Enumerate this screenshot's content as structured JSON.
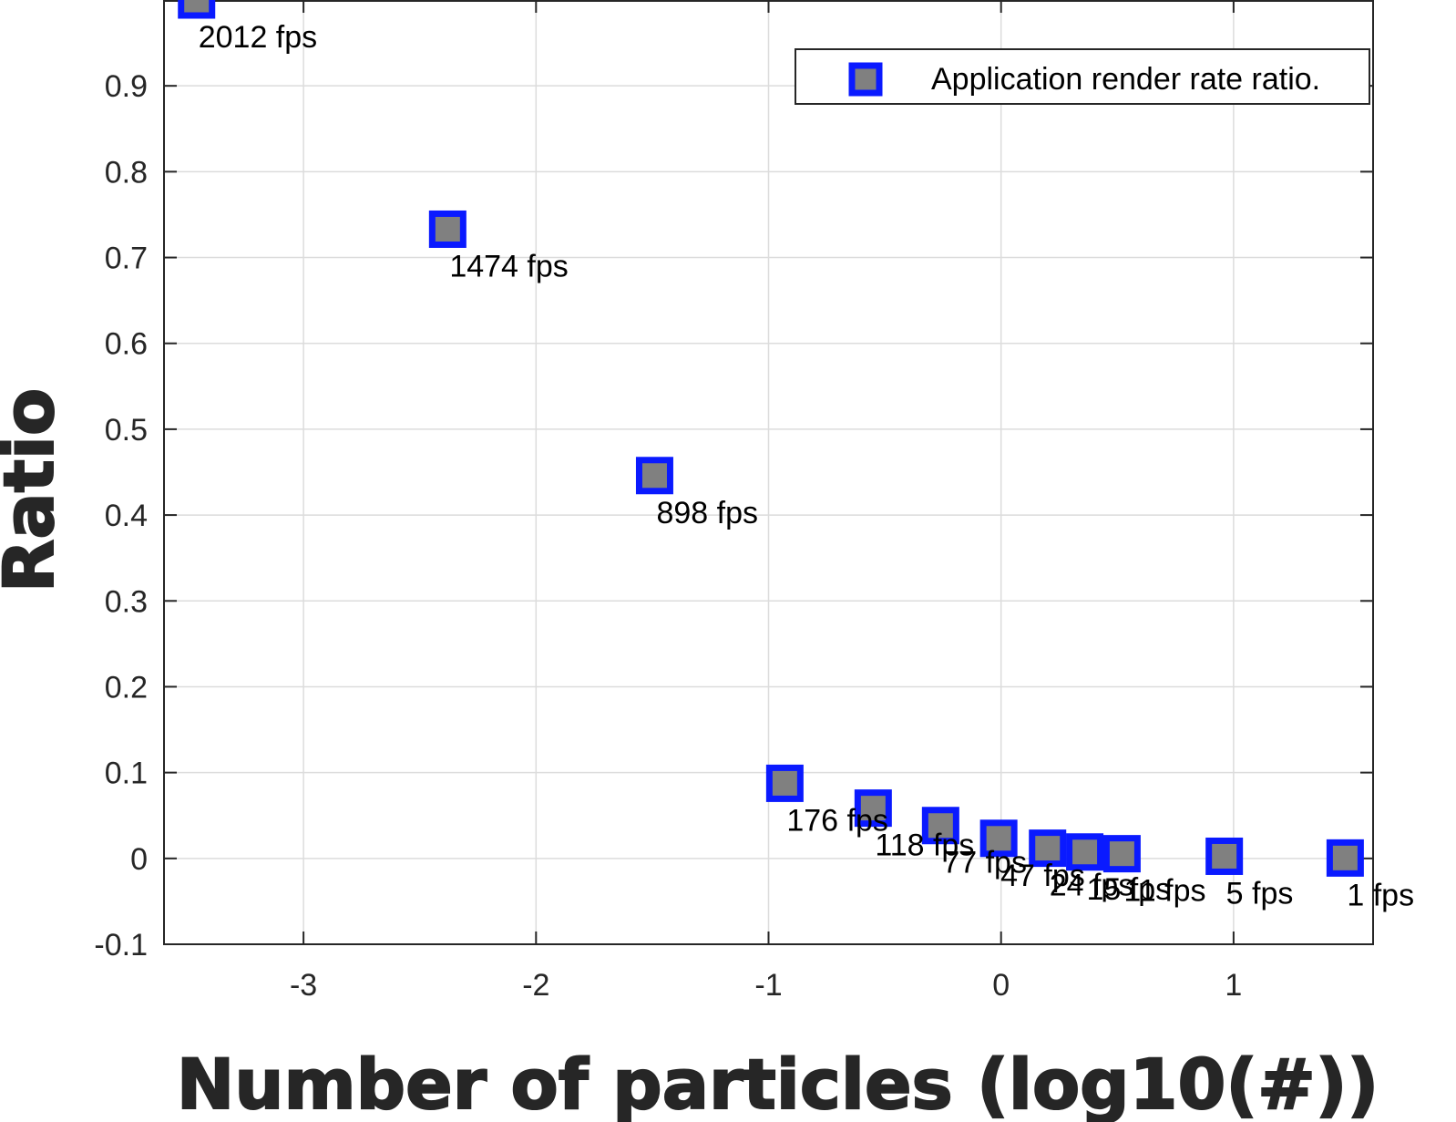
{
  "chart_data": {
    "type": "scatter",
    "xlabel": "Number of particles (log10(#))",
    "ylabel": "Ratio",
    "xlim": [
      -3.6,
      1.6
    ],
    "ylim": [
      -0.1,
      1.0
    ],
    "x_ticks": [
      "-3",
      "-2",
      "-1",
      "0",
      "1"
    ],
    "x_tick_values": [
      -3,
      -2,
      -1,
      0,
      1
    ],
    "y_ticks": [
      "-0.1",
      "0",
      "0.1",
      "0.2",
      "0.3",
      "0.4",
      "0.5",
      "0.6",
      "0.7",
      "0.8",
      "0.9"
    ],
    "y_tick_values": [
      -0.1,
      0,
      0.1,
      0.2,
      0.3,
      0.4,
      0.5,
      0.6,
      0.7,
      0.8,
      0.9
    ],
    "grid": true,
    "legend_position": "top-right",
    "series": [
      {
        "name": "Application render rate ratio.",
        "marker": "square",
        "marker_edge_color": "#0a1aff",
        "marker_face_color": "#808080",
        "points": [
          {
            "x": -3.46,
            "y": 1.0,
            "label": "2012 fps"
          },
          {
            "x": -2.38,
            "y": 0.733,
            "label": "1474 fps"
          },
          {
            "x": -1.49,
            "y": 0.446,
            "label": "898 fps"
          },
          {
            "x": -0.93,
            "y": 0.0875,
            "label": "176 fps"
          },
          {
            "x": -0.55,
            "y": 0.0586,
            "label": "118 fps"
          },
          {
            "x": -0.26,
            "y": 0.0383,
            "label": "77 fps"
          },
          {
            "x": -0.01,
            "y": 0.0234,
            "label": "47 fps"
          },
          {
            "x": 0.2,
            "y": 0.0119,
            "label": "24 fps"
          },
          {
            "x": 0.36,
            "y": 0.0075,
            "label": "15 fps"
          },
          {
            "x": 0.52,
            "y": 0.0055,
            "label": "11 fps"
          },
          {
            "x": 0.96,
            "y": 0.0025,
            "label": "5 fps"
          },
          {
            "x": 1.48,
            "y": 0.0005,
            "label": "1 fps"
          }
        ]
      }
    ]
  }
}
